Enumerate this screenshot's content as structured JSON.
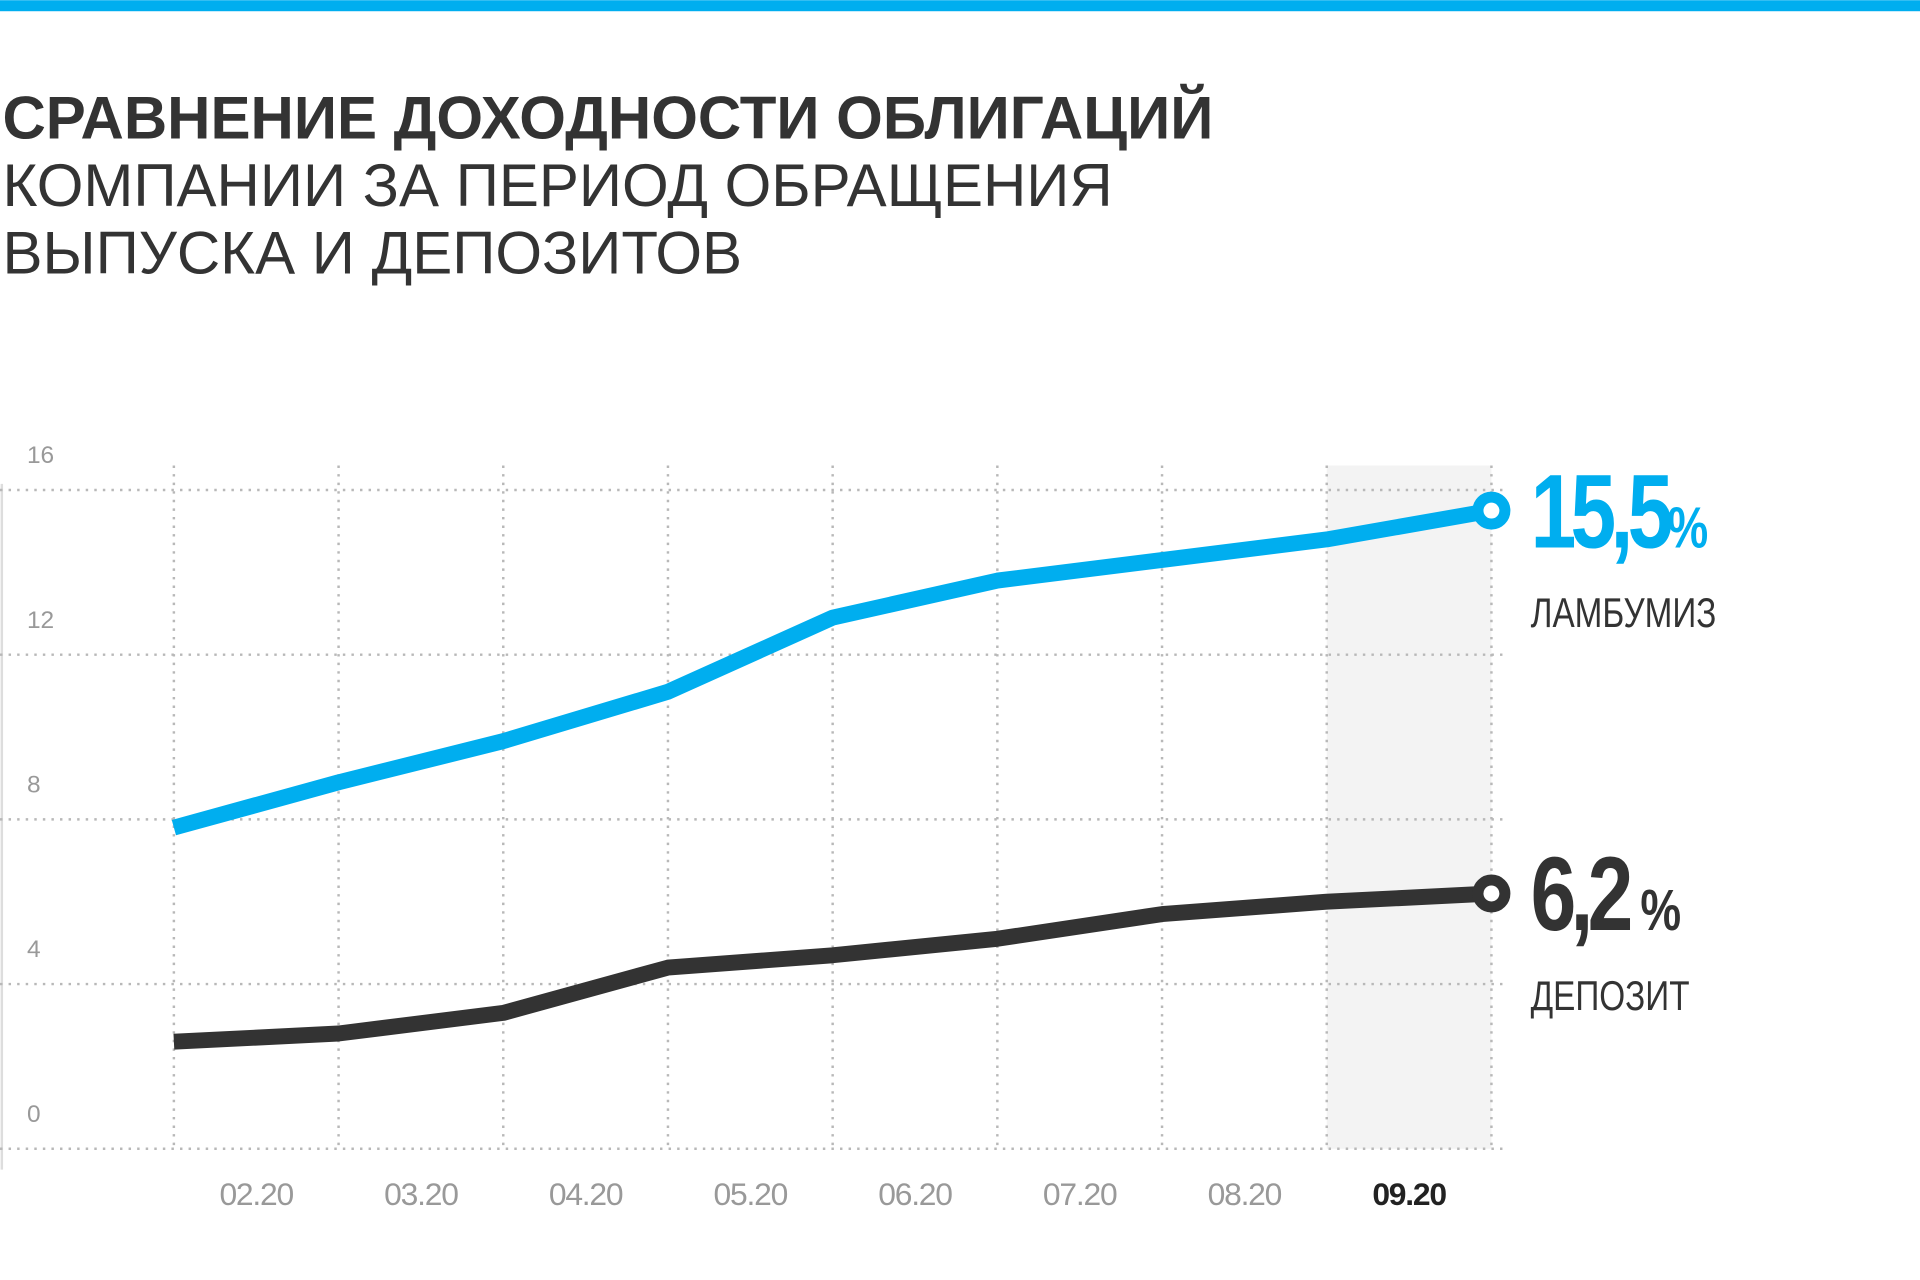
{
  "chart_data": {
    "type": "line",
    "title": "СРАВНЕНИЕ ДОХОДНОСТИ ОБЛИГАЦИЙ",
    "subtitle": [
      "КОМПАНИИ ЗА ПЕРИОД ОБРАЩЕНИЯ",
      "ВЫПУСКА И ДЕПОЗИТОВ"
    ],
    "categories": [
      null,
      "02.20",
      "03.20",
      "04.20",
      "05.20",
      "06.20",
      "07.20",
      "08.20",
      "09.20"
    ],
    "highlight_index": 8,
    "series": [
      {
        "name": "ЛАМБУМИЗ",
        "color": "#00aeef",
        "values": [
          7.8,
          8.9,
          9.9,
          11.1,
          12.9,
          13.8,
          14.3,
          14.8,
          15.5
        ],
        "value_labels": [
          null,
          null,
          null,
          null,
          null,
          null,
          null,
          null,
          "15,5%"
        ]
      },
      {
        "name": "ДЕПОЗИТ",
        "color": "#333333",
        "values": [
          2.6,
          2.8,
          3.3,
          4.4,
          4.7,
          5.1,
          5.7,
          6.0,
          6.2
        ],
        "value_labels": [
          null,
          null,
          null,
          null,
          null,
          null,
          null,
          null,
          "6,2 %"
        ]
      }
    ],
    "ylim": [
      0,
      16
    ],
    "yticks": [
      0,
      4,
      8,
      12,
      16
    ],
    "grid": true
  }
}
